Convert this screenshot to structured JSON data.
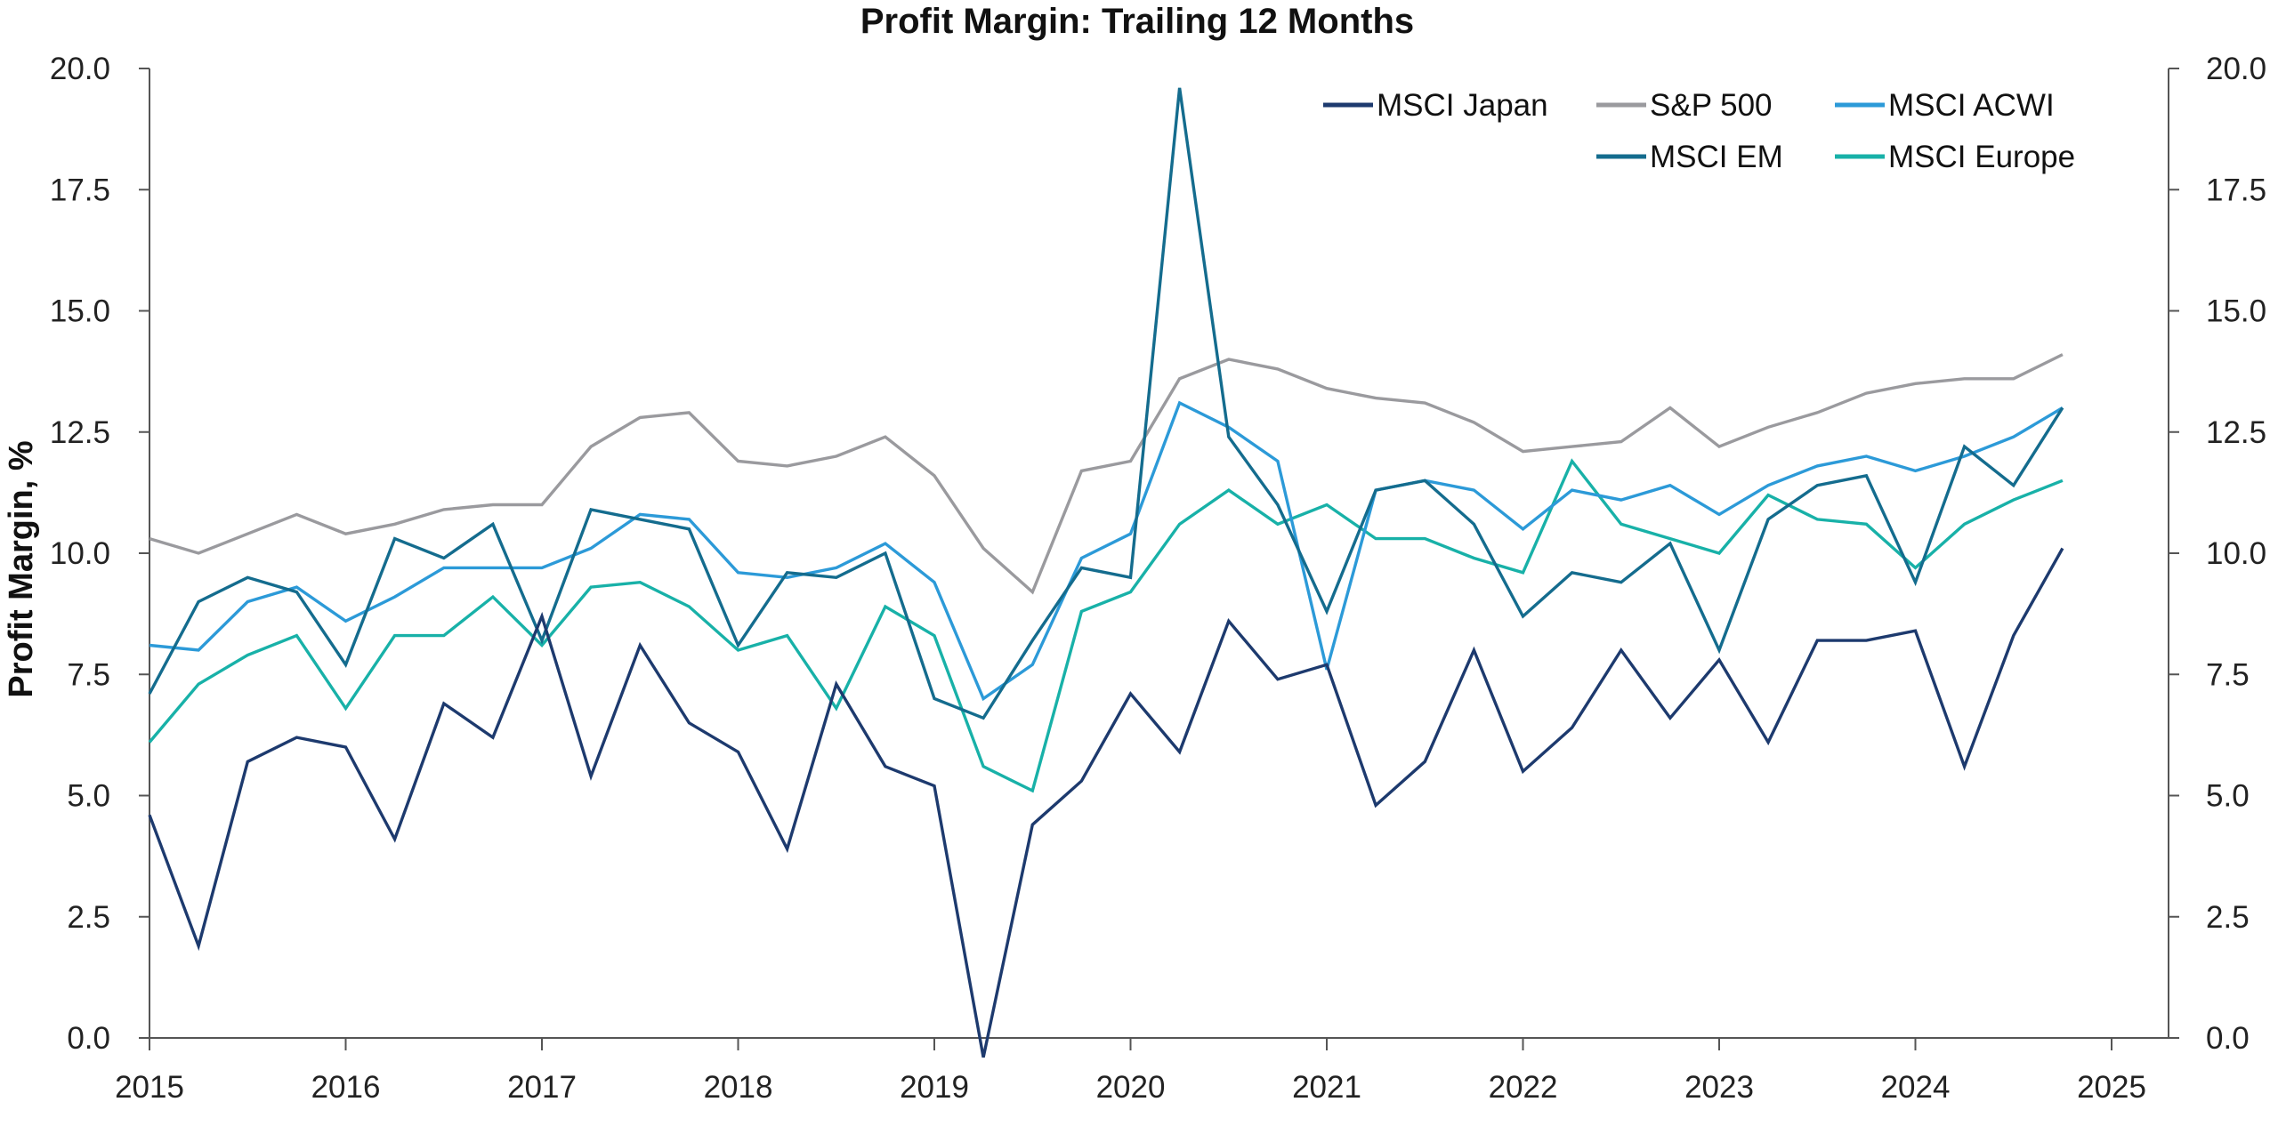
{
  "chart_data": {
    "type": "line",
    "title": "Profit Margin: Trailing 12 Months",
    "ylabel": "Profit Margin, %",
    "xlabel": "",
    "ylim": [
      0,
      20
    ],
    "xlim": [
      2015,
      2025.25
    ],
    "x_ticks": [
      "2015",
      "2016",
      "2017",
      "2018",
      "2019",
      "2020",
      "2021",
      "2022",
      "2023",
      "2024",
      "2025"
    ],
    "y_ticks": [
      "0.0",
      "2.5",
      "5.0",
      "7.5",
      "10.0",
      "12.5",
      "15.0",
      "17.5",
      "20.0"
    ],
    "grid": false,
    "legend_position": "top-right",
    "x": [
      2015.0,
      2015.25,
      2015.5,
      2015.75,
      2016.0,
      2016.25,
      2016.5,
      2016.75,
      2017.0,
      2017.25,
      2017.5,
      2017.75,
      2018.0,
      2018.25,
      2018.5,
      2018.75,
      2019.0,
      2019.25,
      2019.5,
      2019.75,
      2020.0,
      2020.25,
      2020.5,
      2020.75,
      2021.0,
      2021.25,
      2021.5,
      2021.75,
      2022.0,
      2022.25,
      2022.5,
      2022.75,
      2023.0,
      2023.25,
      2023.5,
      2023.75,
      2024.0,
      2024.25,
      2024.5,
      2024.75
    ],
    "series": [
      {
        "name": "MSCI Japan",
        "color": "#1d3a6e",
        "values": [
          4.6,
          1.9,
          5.7,
          6.2,
          6.0,
          4.1,
          6.9,
          6.2,
          8.7,
          5.4,
          8.1,
          6.5,
          5.9,
          3.9,
          7.3,
          5.6,
          5.2,
          -0.4,
          4.4,
          5.3,
          7.1,
          5.9,
          8.6,
          7.4,
          7.7,
          4.8,
          5.7,
          8.0,
          5.5,
          6.4,
          8.0,
          6.6,
          7.8,
          6.1,
          8.2,
          8.2,
          8.4,
          5.6,
          8.3,
          10.1
        ]
      },
      {
        "name": "S&P 500",
        "color": "#9a9a9e",
        "values": [
          10.3,
          10.0,
          10.4,
          10.8,
          10.4,
          10.6,
          10.9,
          11.0,
          11.0,
          12.2,
          12.8,
          12.9,
          11.9,
          11.8,
          12.0,
          12.4,
          11.6,
          10.1,
          9.2,
          11.7,
          11.9,
          13.6,
          14.0,
          13.8,
          13.4,
          13.2,
          13.1,
          12.7,
          12.1,
          12.2,
          12.3,
          13.0,
          12.2,
          12.6,
          12.9,
          13.3,
          13.5,
          13.6,
          13.6,
          14.1
        ]
      },
      {
        "name": "MSCI ACWI",
        "color": "#2c9ad8",
        "values": [
          8.1,
          8.0,
          9.0,
          9.3,
          8.6,
          9.1,
          9.7,
          9.7,
          9.7,
          10.1,
          10.8,
          10.7,
          9.6,
          9.5,
          9.7,
          10.2,
          9.4,
          7.0,
          7.7,
          9.9,
          10.4,
          13.1,
          12.6,
          11.9,
          7.6,
          11.3,
          11.5,
          11.3,
          10.5,
          11.3,
          11.1,
          11.4,
          10.8,
          11.4,
          11.8,
          12.0,
          11.7,
          12.0,
          12.4,
          13.0
        ]
      },
      {
        "name": "MSCI EM",
        "color": "#146c8e",
        "values": [
          7.1,
          9.0,
          9.5,
          9.2,
          7.7,
          10.3,
          9.9,
          10.6,
          8.2,
          10.9,
          10.7,
          10.5,
          8.1,
          9.6,
          9.5,
          10.0,
          7.0,
          6.6,
          8.2,
          9.7,
          9.5,
          19.6,
          12.4,
          11.0,
          8.8,
          11.3,
          11.5,
          10.6,
          8.7,
          9.6,
          9.4,
          10.2,
          8.0,
          10.7,
          11.4,
          11.6,
          9.4,
          12.2,
          11.4,
          13.0
        ]
      },
      {
        "name": "MSCI Europe",
        "color": "#18b1a8",
        "values": [
          6.1,
          7.3,
          7.9,
          8.3,
          6.8,
          8.3,
          8.3,
          9.1,
          8.1,
          9.3,
          9.4,
          8.9,
          8.0,
          8.3,
          6.8,
          8.9,
          8.3,
          5.6,
          5.1,
          8.8,
          9.2,
          10.6,
          11.3,
          10.6,
          11.0,
          10.3,
          10.3,
          9.9,
          9.6,
          11.9,
          10.6,
          10.3,
          10.0,
          11.2,
          10.7,
          10.6,
          9.7,
          10.6,
          11.1,
          11.5
        ]
      }
    ]
  }
}
